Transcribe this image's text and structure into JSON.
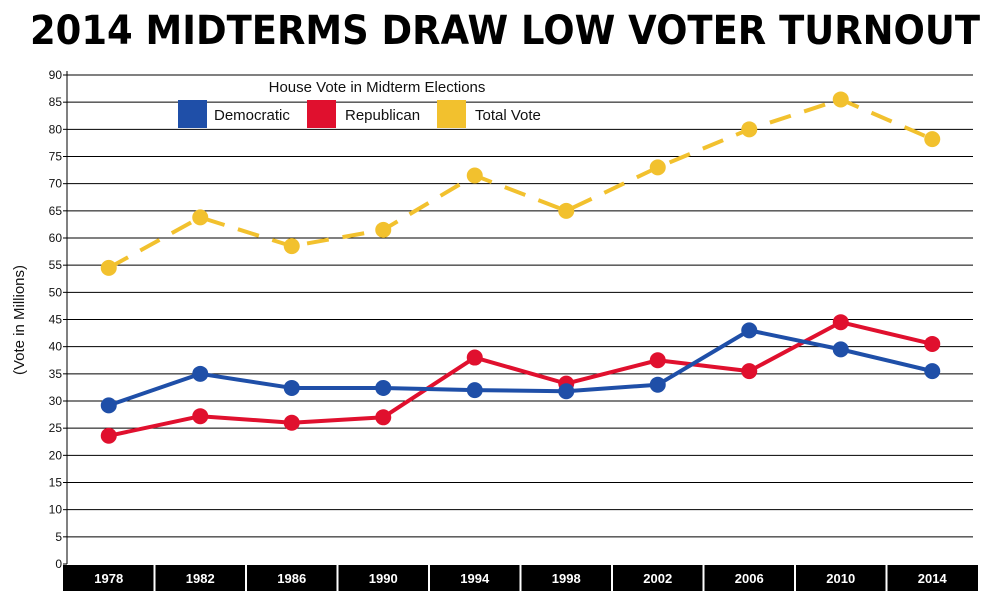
{
  "chart_data": {
    "type": "line",
    "title": "2014 MIDTERMS DRAW LOW VOTER TURNOUT",
    "legend_title": "House Vote in Midterm Elections",
    "xlabel": "",
    "ylabel": "(Vote in Millions)",
    "ylim": [
      0,
      90
    ],
    "yticks": [
      0,
      5,
      10,
      15,
      20,
      25,
      30,
      35,
      40,
      45,
      50,
      55,
      60,
      65,
      70,
      75,
      80,
      85,
      90
    ],
    "categories": [
      "1978",
      "1982",
      "1986",
      "1990",
      "1994",
      "1998",
      "2002",
      "2006",
      "2010",
      "2014"
    ],
    "series": [
      {
        "name": "Democratic",
        "color": "#1f4fa8",
        "dashed": false,
        "values": [
          29.2,
          35.0,
          32.4,
          32.4,
          32.0,
          31.8,
          33.0,
          43.0,
          39.5,
          35.5
        ]
      },
      {
        "name": "Republican",
        "color": "#e0102e",
        "dashed": false,
        "values": [
          23.6,
          27.2,
          26.0,
          27.0,
          38.0,
          33.2,
          37.5,
          35.5,
          44.5,
          40.5
        ]
      },
      {
        "name": "Total Vote",
        "color": "#f2c12e",
        "dashed": true,
        "values": [
          54.5,
          63.8,
          58.5,
          61.5,
          71.5,
          65.0,
          73.0,
          80.0,
          85.5,
          78.2
        ]
      }
    ],
    "grid": true,
    "legend_position": "top-left"
  }
}
